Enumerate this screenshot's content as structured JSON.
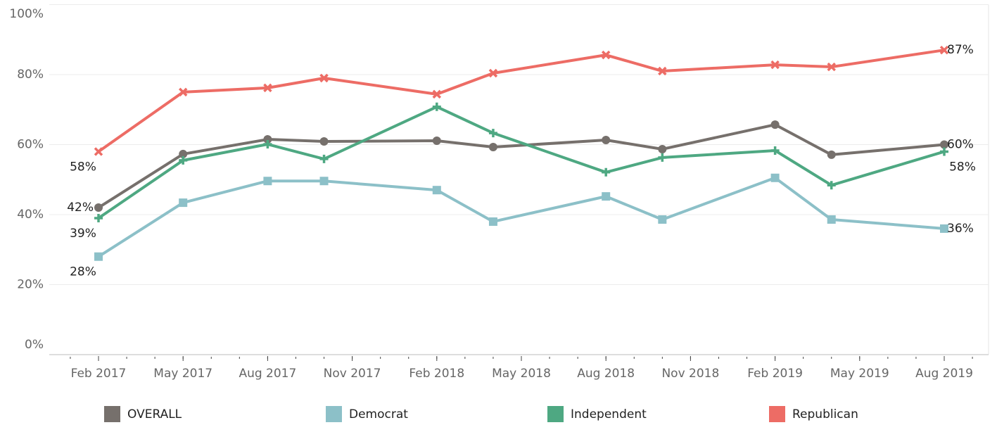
{
  "chart_data": {
    "type": "line",
    "x": [
      "2017-02",
      "2017-05",
      "2017-08",
      "2017-10",
      "2018-02",
      "2018-04",
      "2018-08",
      "2018-10",
      "2019-02",
      "2019-04",
      "2019-08"
    ],
    "xticks": [
      {
        "value": "2017-02",
        "label": "Feb 2017"
      },
      {
        "value": "2017-05",
        "label": "May 2017"
      },
      {
        "value": "2017-08",
        "label": "Aug 2017"
      },
      {
        "value": "2017-11",
        "label": "Nov 2017"
      },
      {
        "value": "2018-02",
        "label": "Feb 2018"
      },
      {
        "value": "2018-05",
        "label": "May 2018"
      },
      {
        "value": "2018-08",
        "label": "Aug 2018"
      },
      {
        "value": "2018-11",
        "label": "Nov 2018"
      },
      {
        "value": "2019-02",
        "label": "Feb 2019"
      },
      {
        "value": "2019-05",
        "label": "May 2019"
      },
      {
        "value": "2019-08",
        "label": "Aug 2019"
      }
    ],
    "ylim": [
      0,
      100
    ],
    "yticks": [
      {
        "value": 0,
        "label": "0%"
      },
      {
        "value": 20,
        "label": "20%"
      },
      {
        "value": 40,
        "label": "40%"
      },
      {
        "value": 60,
        "label": "60%"
      },
      {
        "value": 80,
        "label": "80%"
      },
      {
        "value": 100,
        "label": "100%"
      }
    ],
    "grid": true,
    "series": [
      {
        "name": "OVERALL",
        "color": "#76706c",
        "marker": "circle",
        "values": [
          42,
          57.3,
          61.5,
          60.9,
          61.1,
          59.3,
          61.3,
          58.7,
          65.7,
          57.1,
          60
        ],
        "value_labels": [
          "42%",
          null,
          null,
          null,
          null,
          null,
          null,
          null,
          null,
          null,
          "60%"
        ]
      },
      {
        "name": "Democrat",
        "color": "#8cc0c8",
        "marker": "square",
        "values": [
          28,
          43.4,
          49.6,
          49.6,
          47,
          38,
          45.2,
          38.6,
          50.5,
          38.6,
          36
        ],
        "value_labels": [
          "28%",
          null,
          null,
          null,
          null,
          null,
          null,
          null,
          null,
          null,
          "36%"
        ]
      },
      {
        "name": "Independent",
        "color": "#4ea882",
        "marker": "plus",
        "values": [
          39,
          55.5,
          60.1,
          55.9,
          70.8,
          63.3,
          52.1,
          56.3,
          58.3,
          48.4,
          58
        ],
        "value_labels": [
          "39%",
          null,
          null,
          null,
          null,
          null,
          null,
          null,
          null,
          null,
          "58%"
        ]
      },
      {
        "name": "Republican",
        "color": "#ed6c65",
        "marker": "cross",
        "values": [
          58,
          75,
          76.2,
          79,
          74.4,
          80.4,
          85.6,
          81,
          82.8,
          82.2,
          87
        ],
        "value_labels": [
          "58%",
          null,
          null,
          null,
          null,
          null,
          null,
          null,
          null,
          null,
          "87%"
        ]
      }
    ]
  }
}
